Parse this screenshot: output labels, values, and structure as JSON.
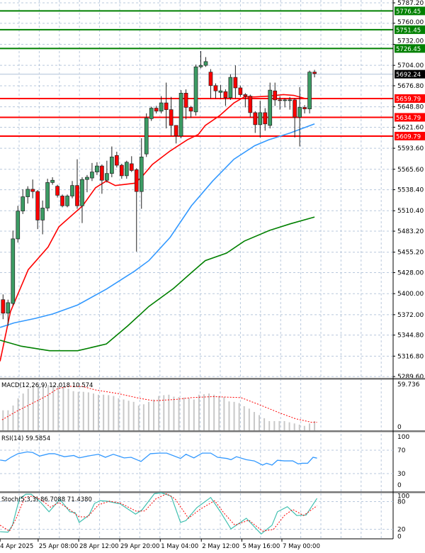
{
  "chart_data": {
    "type": "candlestick",
    "price_axis": {
      "range": [
        5289.6,
        5787.2
      ],
      "ticks": [
        "5787.20",
        "5760.00",
        "5732.00",
        "5704.00",
        "5676.80",
        "5648.80",
        "5621.60",
        "5593.60",
        "5565.60",
        "5538.40",
        "5510.40",
        "5483.20",
        "5455.20",
        "5428.00",
        "5400.00",
        "5372.00",
        "5344.80",
        "5316.80",
        "5289.60"
      ]
    },
    "time_labels": [
      "4 Apr 2025",
      "25 Apr 08:00",
      "28 Apr 12:00",
      "29 Apr 20:00",
      "1 May 04:00",
      "2 May 12:00",
      "5 May 16:00",
      "7 May 00:00"
    ],
    "time_label_bars": [
      -0.6,
      7.1,
      15.3,
      23.6,
      31.8,
      40.1,
      48.3,
      56.4
    ],
    "current_price": {
      "label": "5692.24",
      "value": 5692.24
    },
    "levels": [
      {
        "label": "5776.45",
        "value": 5776.45,
        "color": "#008000"
      },
      {
        "label": "5751.45",
        "value": 5751.45,
        "color": "#008000"
      },
      {
        "label": "5726.45",
        "value": 5726.45,
        "color": "#008000"
      },
      {
        "label": "5659.79",
        "value": 5659.79,
        "color": "#ff0000"
      },
      {
        "label": "5634.79",
        "value": 5634.79,
        "color": "#ff0000"
      },
      {
        "label": "5609.79",
        "value": 5609.79,
        "color": "#ff0000"
      }
    ],
    "candles_ohlc": [
      [
        5392,
        5399,
        5366,
        5374
      ],
      [
        5374,
        5392,
        5357,
        5388
      ],
      [
        5387,
        5484,
        5384,
        5473
      ],
      [
        5473,
        5517,
        5468,
        5510
      ],
      [
        5510,
        5539,
        5506,
        5529
      ],
      [
        5529,
        5543,
        5520,
        5539
      ],
      [
        5539,
        5552,
        5527,
        5536
      ],
      [
        5536,
        5538,
        5486,
        5498
      ],
      [
        5498,
        5524,
        5479,
        5514
      ],
      [
        5514,
        5553,
        5510,
        5548
      ],
      [
        5548,
        5555,
        5545,
        5551
      ],
      [
        5543,
        5545,
        5528,
        5531
      ],
      [
        5530,
        5532,
        5515,
        5517
      ],
      [
        5517,
        5532,
        5515,
        5530
      ],
      [
        5530,
        5550,
        5527,
        5544
      ],
      [
        5544,
        5579,
        5513,
        5517
      ],
      [
        5517,
        5555,
        5494,
        5552
      ],
      [
        5552,
        5558,
        5535,
        5555
      ],
      [
        5554,
        5574,
        5550,
        5562
      ],
      [
        5562,
        5575,
        5558,
        5570
      ],
      [
        5570,
        5572,
        5533,
        5551
      ],
      [
        5551,
        5577,
        5548,
        5560
      ],
      [
        5560,
        5596,
        5555,
        5582
      ],
      [
        5584,
        5589,
        5568,
        5571
      ],
      [
        5571,
        5573,
        5553,
        5557
      ],
      [
        5557,
        5577,
        5553,
        5575
      ],
      [
        5573,
        5583,
        5562,
        5564
      ],
      [
        5565,
        5567,
        5456,
        5536
      ],
      [
        5536,
        5607,
        5513,
        5582
      ],
      [
        5586,
        5640,
        5582,
        5634
      ],
      [
        5633,
        5649,
        5630,
        5647
      ],
      [
        5647,
        5650,
        5640,
        5643
      ],
      [
        5643,
        5663,
        5640,
        5654
      ],
      [
        5654,
        5681,
        5620,
        5645
      ],
      [
        5645,
        5662,
        5610,
        5624
      ],
      [
        5624,
        5624,
        5600,
        5610
      ],
      [
        5610,
        5671,
        5607,
        5667
      ],
      [
        5667,
        5672,
        5632,
        5648
      ],
      [
        5648,
        5650,
        5634,
        5643
      ],
      [
        5642,
        5705,
        5637,
        5702
      ],
      [
        5702,
        5723,
        5700,
        5704
      ],
      [
        5704,
        5715,
        5702,
        5709
      ],
      [
        5695,
        5699,
        5660,
        5677
      ],
      [
        5677,
        5680,
        5660,
        5670
      ],
      [
        5668,
        5678,
        5660,
        5670
      ],
      [
        5669,
        5672,
        5650,
        5661
      ],
      [
        5661,
        5692,
        5658,
        5688
      ],
      [
        5688,
        5704,
        5660,
        5674
      ],
      [
        5674,
        5677,
        5662,
        5665
      ],
      [
        5665,
        5667,
        5648,
        5663
      ],
      [
        5663,
        5665,
        5635,
        5641
      ],
      [
        5641,
        5643,
        5614,
        5625
      ],
      [
        5625,
        5657,
        5608,
        5641
      ],
      [
        5641,
        5647,
        5617,
        5626
      ],
      [
        5624,
        5681,
        5620,
        5671
      ],
      [
        5670,
        5681,
        5650,
        5658
      ],
      [
        5658,
        5663,
        5645,
        5657
      ],
      [
        5657,
        5660,
        5648,
        5658
      ],
      [
        5658,
        5662,
        5645,
        5658
      ],
      [
        5658,
        5660,
        5608,
        5635
      ],
      [
        5635,
        5675,
        5596,
        5648
      ],
      [
        5648,
        5651,
        5640,
        5646
      ],
      [
        5646,
        5697,
        5640,
        5695
      ],
      [
        5695,
        5698,
        5688,
        5693
      ]
    ],
    "moving_averages": [
      {
        "name": "MA fast",
        "color": "#ff0000",
        "points": [
          [
            -0.6,
            5310
          ],
          [
            1.5,
            5376
          ],
          [
            5.1,
            5432
          ],
          [
            9.1,
            5462
          ],
          [
            11.3,
            5489
          ],
          [
            16.1,
            5517
          ],
          [
            18.7,
            5541
          ],
          [
            20.9,
            5550
          ],
          [
            22.7,
            5544
          ],
          [
            26.6,
            5547
          ],
          [
            28,
            5555
          ],
          [
            30.2,
            5572
          ],
          [
            33.8,
            5590
          ],
          [
            37.3,
            5605
          ],
          [
            39.5,
            5612
          ],
          [
            40.9,
            5624
          ],
          [
            43.8,
            5637
          ],
          [
            46.7,
            5654
          ],
          [
            48.8,
            5662
          ],
          [
            50.9,
            5662
          ],
          [
            53.8,
            5663
          ],
          [
            56.7,
            5665
          ],
          [
            58.8,
            5664
          ],
          [
            61,
            5660
          ],
          [
            63,
            5660
          ]
        ]
      },
      {
        "name": "MA mid",
        "color": "#3399ff",
        "points": [
          [
            -0.6,
            5355
          ],
          [
            2.2,
            5361
          ],
          [
            6.5,
            5367
          ],
          [
            10.1,
            5373
          ],
          [
            15.1,
            5385
          ],
          [
            20.9,
            5406
          ],
          [
            26.6,
            5430
          ],
          [
            29.5,
            5444
          ],
          [
            33.8,
            5475
          ],
          [
            38.1,
            5517
          ],
          [
            42.4,
            5550
          ],
          [
            46.7,
            5579
          ],
          [
            50.9,
            5597
          ],
          [
            53.8,
            5605
          ],
          [
            58.1,
            5614
          ],
          [
            63,
            5626
          ]
        ]
      },
      {
        "name": "MA slow",
        "color": "#008000",
        "points": [
          [
            -0.6,
            5338
          ],
          [
            3.7,
            5330
          ],
          [
            9.4,
            5324
          ],
          [
            15.1,
            5324
          ],
          [
            20.9,
            5333
          ],
          [
            25.2,
            5357
          ],
          [
            29.5,
            5383
          ],
          [
            34.5,
            5407
          ],
          [
            38.1,
            5428
          ],
          [
            40.9,
            5444
          ],
          [
            45.2,
            5454
          ],
          [
            48.8,
            5470
          ],
          [
            53.8,
            5484
          ],
          [
            58.1,
            5493
          ],
          [
            63,
            5502
          ]
        ]
      }
    ],
    "macd": {
      "label": "MACD(12,26,9) 12.018 10.574",
      "top_label": "59.736",
      "zero_label": "0",
      "range": [
        0,
        59.736
      ],
      "histogram": [
        26.4,
        26.4,
        32.7,
        42.2,
        48.5,
        54.8,
        57.9,
        59.0,
        59.5,
        59.5,
        59.5,
        59.0,
        57.9,
        54.8,
        51.6,
        50.7,
        50.7,
        50.0,
        48.5,
        46.9,
        46.9,
        46.3,
        45.3,
        42.2,
        40.6,
        39.0,
        37.5,
        32.7,
        34.3,
        37.5,
        40.6,
        45.3,
        46.3,
        46.9,
        44.4,
        43.8,
        43.1,
        42.2,
        40.6,
        46.9,
        47.5,
        48.5,
        46.9,
        45.3,
        43.8,
        38.1,
        37.5,
        35.9,
        31.8,
        28.6,
        24.2,
        20.1,
        16.0,
        12.2,
        12.2,
        12.2,
        12.2,
        10.6,
        9.1,
        7.5,
        5.9,
        9.1,
        12.2
      ],
      "signal": [
        [
          -0.2,
          13.8
        ],
        [
          2.7,
          24.9
        ],
        [
          6.0,
          35.9
        ],
        [
          8.8,
          45.3
        ],
        [
          11.0,
          54.8
        ],
        [
          13.2,
          57.9
        ],
        [
          16.0,
          57.9
        ],
        [
          18.7,
          53.2
        ],
        [
          23.2,
          48.5
        ],
        [
          27.6,
          42.2
        ],
        [
          30.4,
          39.0
        ],
        [
          34.8,
          40.6
        ],
        [
          38.1,
          43.1
        ],
        [
          42.5,
          44.4
        ],
        [
          48.1,
          43.1
        ],
        [
          51.4,
          34.9
        ],
        [
          55.8,
          23.3
        ],
        [
          59.1,
          15.4
        ],
        [
          62.4,
          10.6
        ],
        [
          63.5,
          10.6
        ]
      ]
    },
    "rsi": {
      "label": "RSI(14) 59.5854",
      "levels": [
        "100",
        "70",
        "30",
        "0"
      ],
      "points": [
        [
          -0.6,
          56.4
        ],
        [
          0.5,
          55
        ],
        [
          1.6,
          61
        ],
        [
          3.0,
          67
        ],
        [
          4.9,
          70
        ],
        [
          6.0,
          69
        ],
        [
          7.4,
          63
        ],
        [
          9.3,
          67
        ],
        [
          10.4,
          67
        ],
        [
          12.4,
          62
        ],
        [
          14.3,
          64
        ],
        [
          15.4,
          60
        ],
        [
          17.1,
          63
        ],
        [
          19.3,
          66
        ],
        [
          20.7,
          61
        ],
        [
          22.3,
          66
        ],
        [
          24.5,
          60
        ],
        [
          25.9,
          61
        ],
        [
          27.9,
          54
        ],
        [
          29.8,
          67
        ],
        [
          31.5,
          68
        ],
        [
          33.1,
          68
        ],
        [
          35.9,
          59
        ],
        [
          37.0,
          66
        ],
        [
          38.6,
          60
        ],
        [
          40.3,
          68
        ],
        [
          42.0,
          68
        ],
        [
          43.4,
          61
        ],
        [
          45.3,
          59
        ],
        [
          46.1,
          57
        ],
        [
          47.2,
          62
        ],
        [
          49.2,
          57
        ],
        [
          50.8,
          55
        ],
        [
          52.5,
          48
        ],
        [
          53.3,
          51
        ],
        [
          54.4,
          48
        ],
        [
          55.5,
          56
        ],
        [
          56.9,
          55
        ],
        [
          58.6,
          55
        ],
        [
          59.7,
          50
        ],
        [
          60.5,
          51
        ],
        [
          61.6,
          51
        ],
        [
          62.7,
          61
        ],
        [
          63.5,
          59.6
        ]
      ]
    },
    "stoch": {
      "label": "Stoch(5,3,3) 86.7088 71.4380",
      "levels": [
        "100",
        "80",
        "20",
        "0"
      ],
      "main": [
        [
          -0.6,
          15
        ],
        [
          1.0,
          14
        ],
        [
          1.9,
          29
        ],
        [
          3.3,
          86
        ],
        [
          4.6,
          96
        ],
        [
          5.7,
          96
        ],
        [
          7.4,
          81
        ],
        [
          9.3,
          58
        ],
        [
          11.5,
          85
        ],
        [
          13.5,
          58
        ],
        [
          14.6,
          56
        ],
        [
          15.4,
          35
        ],
        [
          17.4,
          51
        ],
        [
          18.5,
          76
        ],
        [
          19.6,
          82
        ],
        [
          21.0,
          81
        ],
        [
          23.7,
          75
        ],
        [
          26.8,
          53
        ],
        [
          28.1,
          62
        ],
        [
          30.6,
          97
        ],
        [
          32.0,
          99
        ],
        [
          34.0,
          92
        ],
        [
          35.9,
          35
        ],
        [
          37.0,
          39
        ],
        [
          39.2,
          67
        ],
        [
          42.0,
          89
        ],
        [
          43.9,
          59
        ],
        [
          46.1,
          21
        ],
        [
          49.2,
          44
        ],
        [
          52.2,
          10
        ],
        [
          54.4,
          29
        ],
        [
          55.5,
          58
        ],
        [
          57.5,
          69
        ],
        [
          59.4,
          50
        ],
        [
          61.3,
          51
        ],
        [
          63.5,
          87
        ]
      ],
      "signal": [
        [
          -0.6,
          29
        ],
        [
          1.3,
          16
        ],
        [
          2.7,
          45
        ],
        [
          4.4,
          89
        ],
        [
          6.0,
          92
        ],
        [
          7.7,
          84
        ],
        [
          9.6,
          68
        ],
        [
          11.3,
          78
        ],
        [
          13.2,
          65
        ],
        [
          15.4,
          47
        ],
        [
          17.1,
          47
        ],
        [
          19.3,
          73
        ],
        [
          21.5,
          81
        ],
        [
          23.7,
          77
        ],
        [
          27.0,
          59
        ],
        [
          28.7,
          60
        ],
        [
          30.9,
          86
        ],
        [
          33.1,
          97
        ],
        [
          34.8,
          86
        ],
        [
          37.5,
          44
        ],
        [
          39.8,
          63
        ],
        [
          42.8,
          82
        ],
        [
          44.7,
          55
        ],
        [
          46.9,
          29
        ],
        [
          49.7,
          40
        ],
        [
          52.5,
          16
        ],
        [
          54.7,
          20
        ],
        [
          56.9,
          50
        ],
        [
          58.6,
          63
        ],
        [
          60.8,
          50
        ],
        [
          63.5,
          71
        ]
      ]
    },
    "colors": {
      "bull": "#3c9c64",
      "bear": "#ff0000",
      "grid": "#b8c8dc"
    }
  }
}
